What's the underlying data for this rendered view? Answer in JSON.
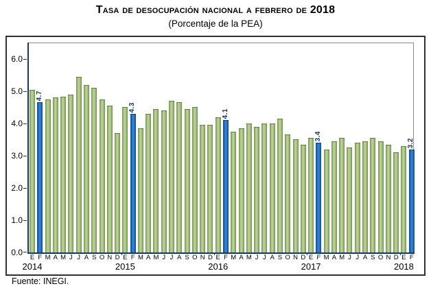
{
  "title": "Tasa de desocupación nacional a febrero de 2018",
  "subtitle": "(Porcentaje de la PEA)",
  "source": "Fuente: INEGI.",
  "colors": {
    "bar_green": "#9cba76",
    "bar_green_edge": "#6f8f47",
    "bar_blue": "#1d6cc0",
    "bar_blue_edge": "#0e4a8c",
    "axis": "#17375E",
    "value_label": "#17375E"
  },
  "chart_data": {
    "type": "bar",
    "title": "Tasa de desocupación nacional a febrero de 2018",
    "subtitle": "(Porcentaje de la PEA)",
    "xlabel": "",
    "ylabel": "Porcentaje de la PEA",
    "ylim": [
      0,
      6.5
    ],
    "grid": false,
    "yticks": [
      "0.0",
      "1.0",
      "2.0",
      "3.0",
      "4.0",
      "5.0",
      "6.0"
    ],
    "month_letters_full": [
      "E",
      "F",
      "M",
      "A",
      "M",
      "J",
      "J",
      "A",
      "S",
      "O",
      "N",
      "D"
    ],
    "series": [
      {
        "year": "2014",
        "months": [
          "E",
          "F",
          "M",
          "A",
          "M",
          "J",
          "J",
          "A",
          "S",
          "O",
          "N",
          "D"
        ],
        "values": [
          5.05,
          4.65,
          4.75,
          4.8,
          4.82,
          4.9,
          5.45,
          5.2,
          5.1,
          4.75,
          4.55,
          3.7
        ]
      },
      {
        "year": "2015",
        "months": [
          "E",
          "F",
          "M",
          "A",
          "M",
          "J",
          "J",
          "A",
          "S",
          "O",
          "N",
          "D"
        ],
        "values": [
          4.5,
          4.3,
          3.85,
          4.3,
          4.45,
          4.4,
          4.7,
          4.65,
          4.45,
          4.5,
          3.95,
          3.95
        ]
      },
      {
        "year": "2016",
        "months": [
          "E",
          "F",
          "M",
          "A",
          "M",
          "J",
          "J",
          "A",
          "S",
          "O",
          "N",
          "D"
        ],
        "values": [
          4.2,
          4.1,
          3.75,
          3.85,
          4.0,
          3.9,
          4.0,
          4.0,
          4.15,
          3.65,
          3.5,
          3.35
        ]
      },
      {
        "year": "2017",
        "months": [
          "E",
          "F",
          "M",
          "A",
          "M",
          "J",
          "J",
          "A",
          "S",
          "O",
          "N",
          "D"
        ],
        "values": [
          3.55,
          3.4,
          3.2,
          3.45,
          3.55,
          3.25,
          3.4,
          3.45,
          3.55,
          3.45,
          3.35,
          3.1
        ]
      },
      {
        "year": "2018",
        "months": [
          "E",
          "F"
        ],
        "values": [
          3.3,
          3.2
        ]
      }
    ],
    "highlighted_month": "F",
    "highlighted_month_index": 1,
    "highlight_color": "#1d6cc0",
    "highlight_labels": [
      "4.7",
      "4.3",
      "4.1",
      "3.4",
      "3.2"
    ],
    "legend": "none"
  }
}
